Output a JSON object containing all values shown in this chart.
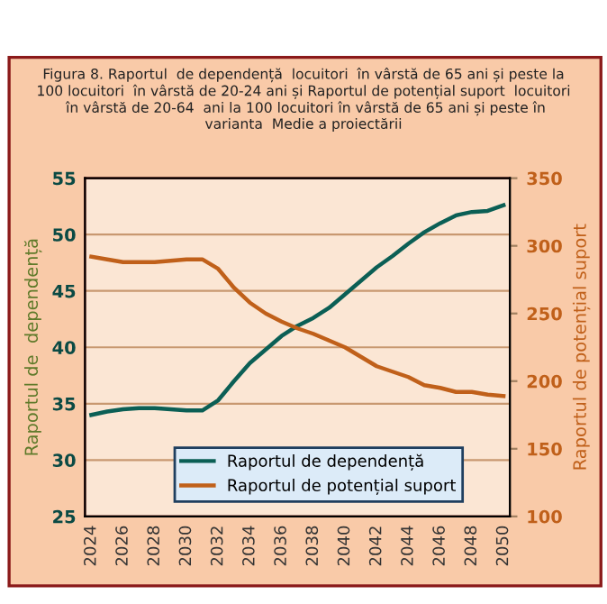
{
  "chart_data": {
    "type": "line",
    "title": "Figura 8. Raportul  de dependență  locuitori  în vârstă de 65 ani și peste la 100 locuitori  în vârstă de 20-24 ani și Raportul de potențial suport  locuitori  în vârstă de 20-64  ani la 100 locuitori în vârstă de 65 ani și peste în varianta  Medie a proiectării",
    "ylabel": "Raportul de  dependență",
    "y2label": "Raportul de potențial suport",
    "x": [
      2024,
      2025,
      2026,
      2027,
      2028,
      2029,
      2030,
      2031,
      2032,
      2033,
      2034,
      2035,
      2036,
      2037,
      2038,
      2039,
      2040,
      2041,
      2042,
      2043,
      2044,
      2045,
      2046,
      2047,
      2048,
      2049,
      2050
    ],
    "series": [
      {
        "name": "Raportul de dependență",
        "color": "#0b5f55",
        "values": [
          34.0,
          34.3,
          34.5,
          34.6,
          34.6,
          34.5,
          34.4,
          34.4,
          35.3,
          37.0,
          38.6,
          39.8,
          41.0,
          41.9,
          42.6,
          43.5,
          44.7,
          45.9,
          47.1,
          48.1,
          49.2,
          50.2,
          51.0,
          51.7,
          52.0,
          52.1,
          52.6
        ]
      },
      {
        "name": "Raportul de potențial suport",
        "color": "#c0601a",
        "axis": "y2",
        "values": [
          292,
          290,
          288,
          288,
          288,
          289,
          290,
          290,
          283,
          269,
          258,
          250,
          244,
          239,
          235,
          230,
          225,
          218,
          211,
          207,
          203,
          197,
          195,
          192,
          192,
          190,
          189
        ]
      }
    ],
    "xlim": [
      2023.6,
      2050.4
    ],
    "xticks": [
      2024,
      2026,
      2028,
      2030,
      2032,
      2034,
      2036,
      2038,
      2040,
      2042,
      2044,
      2046,
      2048,
      2050
    ],
    "ylim": [
      25,
      55
    ],
    "yticks": [
      25,
      30,
      35,
      40,
      45,
      50,
      55
    ],
    "y2lim": [
      100,
      350
    ],
    "y2ticks": [
      100,
      150,
      200,
      250,
      300,
      350
    ],
    "grid": "y",
    "legend": "bottom",
    "marker": "none",
    "line_style": "solid"
  }
}
